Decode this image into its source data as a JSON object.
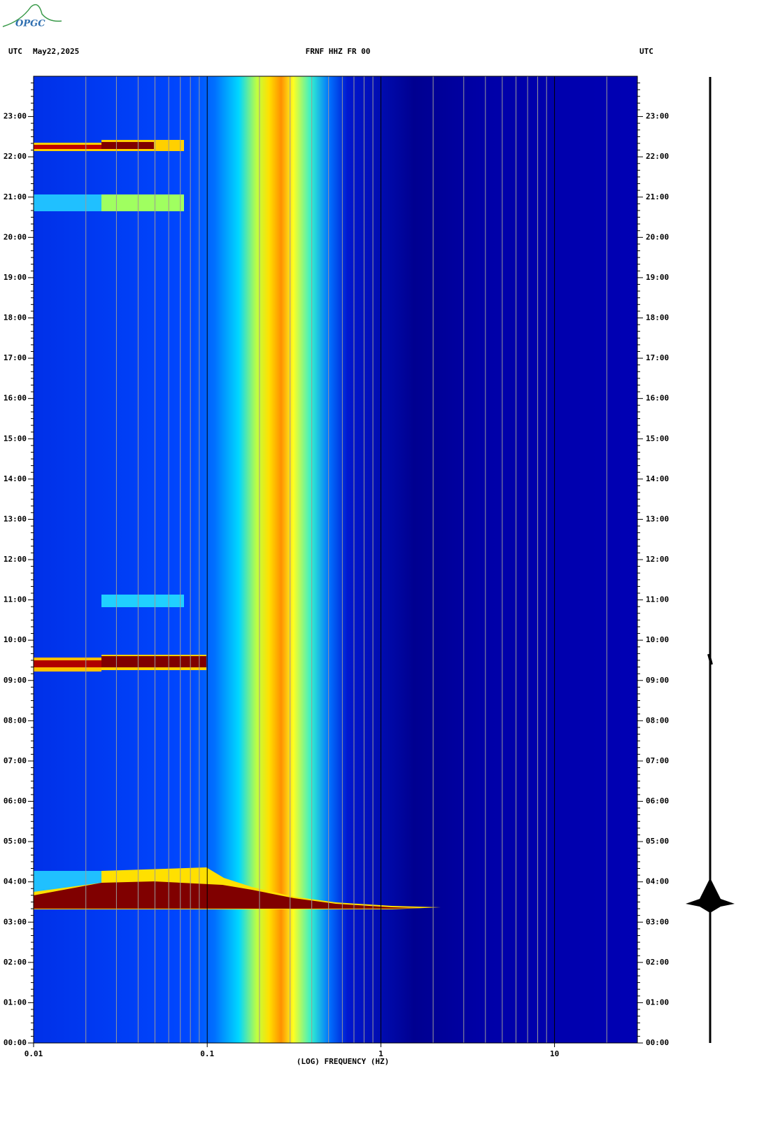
{
  "logo": "OPGC",
  "chart_data": {
    "type": "spectrogram",
    "title": "FRNF HHZ FR 00",
    "date": "May22,2025",
    "timezone_left": "UTC",
    "timezone_right": "UTC",
    "xlabel": "(LOG) FREQUENCY (HZ)",
    "xscale": "log",
    "xlim": [
      0.01,
      30
    ],
    "xticks": [
      0.01,
      0.1,
      1,
      10
    ],
    "ylim": [
      0,
      24
    ],
    "yticks": [
      {
        "value": 0,
        "label": "00:00"
      },
      {
        "value": 1,
        "label": "01:00"
      },
      {
        "value": 2,
        "label": "02:00"
      },
      {
        "value": 3,
        "label": "03:00"
      },
      {
        "value": 4,
        "label": "04:00"
      },
      {
        "value": 5,
        "label": "05:00"
      },
      {
        "value": 6,
        "label": "06:00"
      },
      {
        "value": 7,
        "label": "07:00"
      },
      {
        "value": 8,
        "label": "08:00"
      },
      {
        "value": 9,
        "label": "09:00"
      },
      {
        "value": 10,
        "label": "10:00"
      },
      {
        "value": 11,
        "label": "11:00"
      },
      {
        "value": 12,
        "label": "12:00"
      },
      {
        "value": 13,
        "label": "13:00"
      },
      {
        "value": 14,
        "label": "14:00"
      },
      {
        "value": 15,
        "label": "15:00"
      },
      {
        "value": 16,
        "label": "16:00"
      },
      {
        "value": 17,
        "label": "17:00"
      },
      {
        "value": 18,
        "label": "18:00"
      },
      {
        "value": 19,
        "label": "19:00"
      },
      {
        "value": 20,
        "label": "20:00"
      },
      {
        "value": 21,
        "label": "21:00"
      },
      {
        "value": 22,
        "label": "22:00"
      },
      {
        "value": 23,
        "label": "23:00"
      }
    ],
    "grid": true
  }
}
